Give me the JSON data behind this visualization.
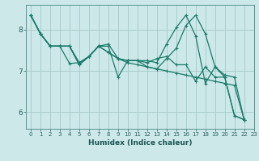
{
  "title": "",
  "xlabel": "Humidex (Indice chaleur)",
  "background_color": "#cce8e8",
  "grid_color": "#aacece",
  "line_color": "#1a7a6a",
  "xlim": [
    -0.5,
    23
  ],
  "ylim": [
    5.6,
    8.6
  ],
  "yticks": [
    6,
    7,
    8
  ],
  "xticks": [
    0,
    1,
    2,
    3,
    4,
    5,
    6,
    7,
    8,
    9,
    10,
    11,
    12,
    13,
    14,
    15,
    16,
    17,
    18,
    19,
    20,
    21,
    22,
    23
  ],
  "series": [
    [
      8.35,
      7.9,
      7.6,
      7.6,
      7.6,
      7.15,
      7.35,
      7.6,
      7.6,
      6.85,
      7.25,
      7.25,
      7.2,
      7.3,
      7.35,
      7.15,
      7.15,
      6.75,
      7.1,
      6.85,
      6.85,
      5.92,
      5.82
    ],
    [
      8.35,
      7.9,
      7.6,
      7.6,
      7.6,
      7.15,
      7.35,
      7.6,
      7.45,
      7.3,
      7.2,
      7.15,
      7.1,
      7.05,
      7.0,
      6.95,
      6.9,
      6.85,
      6.8,
      6.75,
      6.7,
      6.65,
      5.82
    ],
    [
      8.35,
      7.9,
      7.6,
      7.6,
      7.6,
      7.2,
      7.35,
      7.6,
      7.65,
      7.3,
      7.25,
      7.25,
      7.25,
      7.2,
      7.65,
      8.05,
      8.35,
      7.85,
      6.7,
      7.1,
      6.85,
      5.92,
      5.82
    ],
    [
      8.35,
      7.9,
      7.6,
      7.6,
      7.18,
      7.2,
      7.35,
      7.6,
      7.45,
      7.3,
      7.25,
      7.25,
      7.1,
      7.05,
      7.3,
      7.55,
      8.1,
      8.35,
      7.9,
      7.1,
      6.9,
      6.85,
      5.82
    ]
  ]
}
